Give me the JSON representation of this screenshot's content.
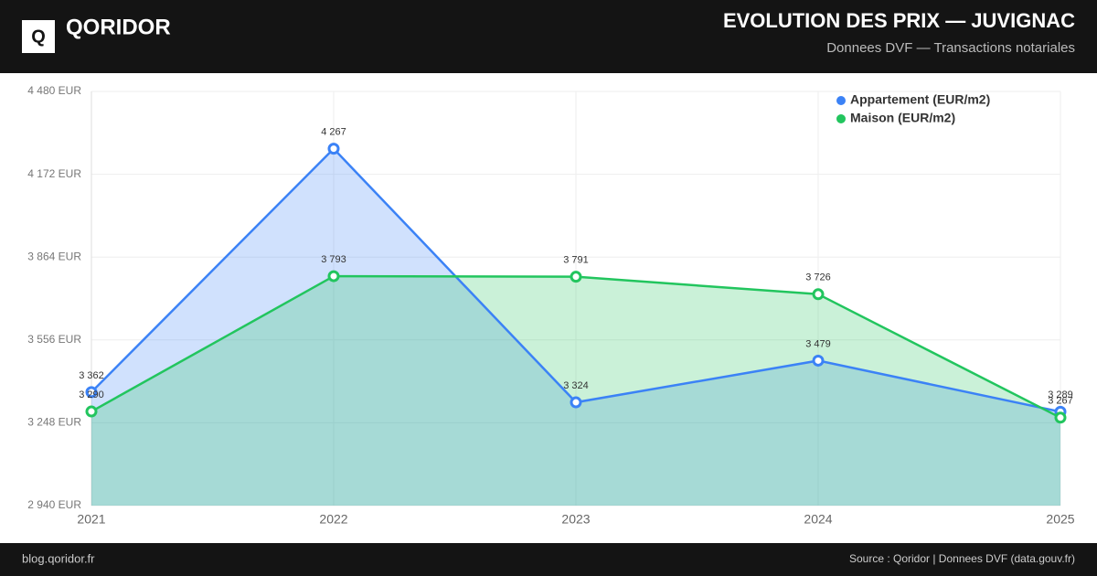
{
  "header": {
    "logo": "Q",
    "brand": "QORIDOR"
  },
  "footer": {
    "site": "blog.qoridor.fr",
    "source": "Source : Qoridor | Donnees DVF (data.gouv.fr)"
  },
  "chart_data": {
    "type": "area",
    "title": "EVOLUTION DES PRIX — JUVIGNAC",
    "subtitle": "Donnees DVF — Transactions notariales",
    "categories": [
      "2021",
      "2022",
      "2023",
      "2024",
      "2025"
    ],
    "series": [
      {
        "name": "Appartement (EUR/m2)",
        "color": "#3b82f6",
        "values": [
          3362,
          4267,
          3324,
          3479,
          3289
        ],
        "value_labels": [
          "3 362",
          "4 267",
          "3 324",
          "3 479",
          "3 289"
        ]
      },
      {
        "name": "Maison (EUR/m2)",
        "color": "#22c55e",
        "values": [
          3290,
          3793,
          3791,
          3726,
          3267
        ],
        "value_labels": [
          "3 290",
          "3 793",
          "3 791",
          "3 726",
          "3 267"
        ]
      }
    ],
    "ylim": [
      2940,
      4480
    ],
    "yticks": [
      {
        "value": 2940,
        "label": "2 940 EUR"
      },
      {
        "value": 3248,
        "label": "3 248 EUR"
      },
      {
        "value": 3556,
        "label": "3 556 EUR"
      },
      {
        "value": 3864,
        "label": "3 864 EUR"
      },
      {
        "value": 4172,
        "label": "4 172 EUR"
      },
      {
        "value": 4480,
        "label": "4 480 EUR"
      }
    ],
    "grid": true,
    "legend": "top-right"
  }
}
